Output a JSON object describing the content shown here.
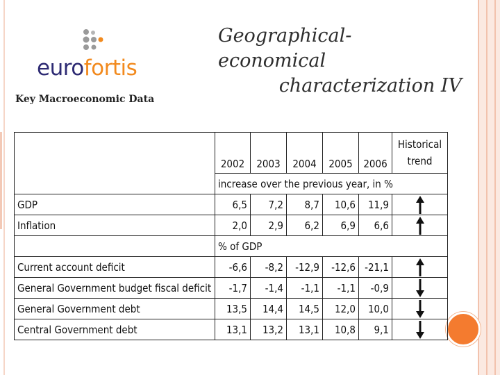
{
  "logo": {
    "part1": "euro",
    "part2": "fortis",
    "colors": {
      "euro": "#2d2a73",
      "fortis": "#f28a1e",
      "dots_gray": "#9a9a9a",
      "dot_orange": "#f28a1e"
    }
  },
  "title": {
    "line1": "Geographical- economical",
    "line2": "characterization IV"
  },
  "subtitle": "Key Macroeconomic Data",
  "table": {
    "years": [
      "2002",
      "2003",
      "2004",
      "2005",
      "2006"
    ],
    "historical_line1": "Historical",
    "historical_line2": "trend",
    "section1": "increase over the previous year, in %",
    "section2": "% of GDP",
    "rows_section1": [
      {
        "label": "GDP",
        "values": [
          "6,5",
          "7,2",
          "8,7",
          "10,6",
          "11,9"
        ],
        "trend": "up-arrow-icon"
      },
      {
        "label": "Inflation",
        "values": [
          "2,0",
          "2,9",
          "6,2",
          "6,9",
          "6,6"
        ],
        "trend": "up-arrow-icon"
      }
    ],
    "rows_section2": [
      {
        "label": "Current account deficit",
        "values": [
          "-6,6",
          "-8,2",
          "-12,9",
          "-12,6",
          "-21,1"
        ],
        "trend": "up-arrow-icon"
      },
      {
        "label": "General Government budget fiscal deficit",
        "values": [
          "-1,7",
          "-1,4",
          "-1,1",
          "-1,1",
          "-0,9"
        ],
        "trend": "down-arrow-icon"
      },
      {
        "label": "General Government debt",
        "values": [
          "13,5",
          "14,4",
          "14,5",
          "12,0",
          "10,0"
        ],
        "trend": "down-arrow-icon"
      },
      {
        "label": "Central Government debt",
        "values": [
          "13,1",
          "13,2",
          "13,1",
          "10,8",
          "9,1"
        ],
        "trend": "down-arrow-icon"
      }
    ]
  },
  "theme": {
    "accent_circle": "#f47b2f",
    "border_band": "#fbe9e1"
  }
}
